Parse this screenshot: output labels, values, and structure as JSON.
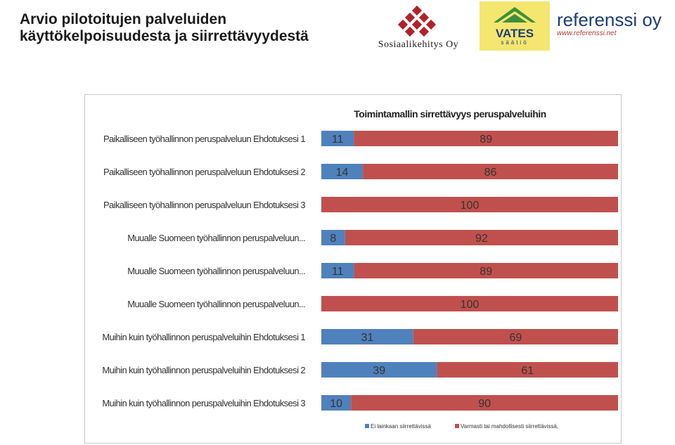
{
  "slide": {
    "title_line1": "Arvio pilotoitujen palveluiden",
    "title_line2": "käyttökelpoisuudesta ja siirrettävyydestä"
  },
  "logos": {
    "sosiaalikehitys": "Sosiaalikehitys Oy",
    "vates_name": "VATES",
    "vates_sub": "säätiö",
    "referenssi_name": "referenssi oy",
    "referenssi_url": "www.referenssi.net"
  },
  "colors": {
    "series_1": "#4f81bd",
    "series_2": "#c0504d",
    "accent_dark": "#1f3c7a"
  },
  "chart_data": {
    "type": "bar",
    "orientation": "horizontal",
    "stacked": true,
    "title": "Toimintamallin sirrettävyys peruspalveluihin",
    "categories": [
      "Paikalliseen työhallinnon peruspalveluun Ehdotuksesi 1",
      "Paikalliseen työhallinnon peruspalveluun Ehdotuksesi 2",
      "Paikalliseen työhallinnon peruspalveluun Ehdotuksesi 3",
      "Muualle Suomeen työhallinnon peruspalveluun...",
      "Muualle Suomeen työhallinnon peruspalveluun...",
      "Muualle Suomeen työhallinnon peruspalveluun...",
      "Muihin kuin työhallinnon peruspalveluihin Ehdotuksesi 1",
      "Muihin kuin työhallinnon peruspalveluihin Ehdotuksesi 2",
      "Muihin kuin työhallinnon peruspalveluihin Ehdotuksesi 3"
    ],
    "series": [
      {
        "name": "Ei lainkaan siirrettävissä",
        "values": [
          11,
          14,
          0,
          8,
          11,
          0,
          31,
          39,
          10
        ]
      },
      {
        "name": "Varmasti tai mahdollisesti siirrettävissä,",
        "values": [
          89,
          86,
          100,
          92,
          89,
          100,
          69,
          61,
          90
        ]
      }
    ],
    "xlim": [
      0,
      100
    ],
    "legend_position": "bottom",
    "grid": false
  }
}
